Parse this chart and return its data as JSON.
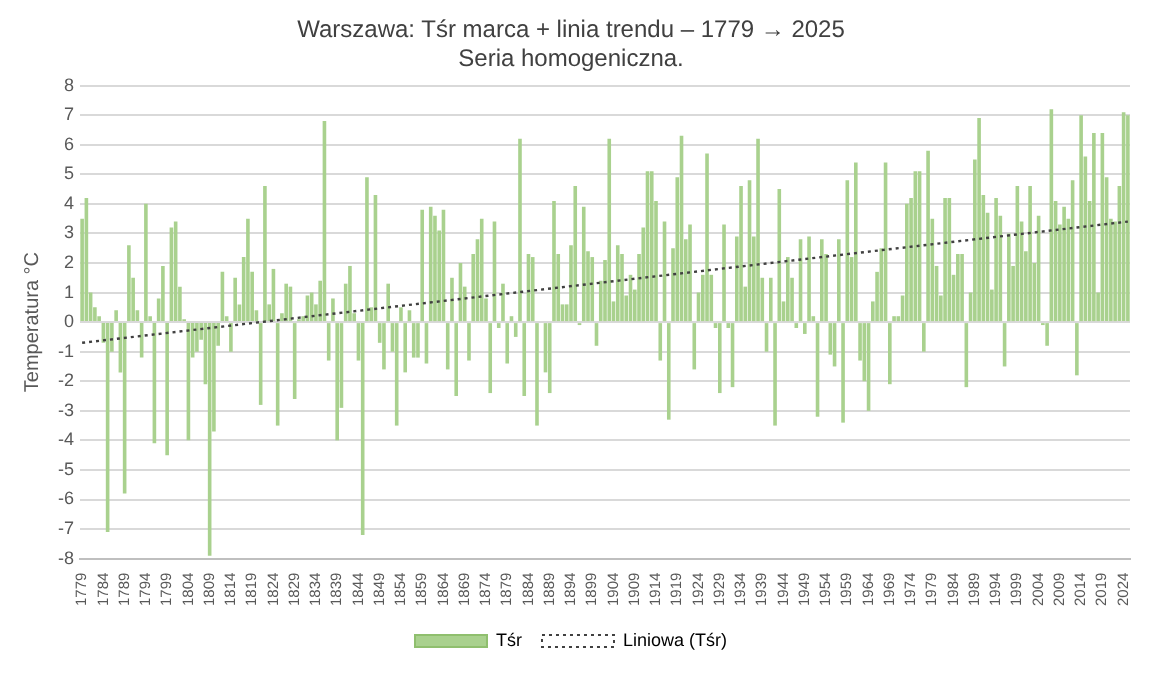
{
  "chart_data": {
    "type": "bar",
    "title": "Warszawa: Tśr marca + linia trendu – 1779 → 2025",
    "subtitle": "Seria homogeniczna.",
    "ylabel": "Temperatura °C",
    "x": [
      1779,
      1780,
      1781,
      1782,
      1783,
      1784,
      1785,
      1786,
      1787,
      1788,
      1789,
      1790,
      1791,
      1792,
      1793,
      1794,
      1795,
      1796,
      1797,
      1798,
      1799,
      1800,
      1801,
      1802,
      1803,
      1804,
      1805,
      1806,
      1807,
      1808,
      1809,
      1810,
      1811,
      1812,
      1813,
      1814,
      1815,
      1816,
      1817,
      1818,
      1819,
      1820,
      1821,
      1822,
      1823,
      1824,
      1825,
      1826,
      1827,
      1828,
      1829,
      1830,
      1831,
      1832,
      1833,
      1834,
      1835,
      1836,
      1837,
      1838,
      1839,
      1840,
      1841,
      1842,
      1843,
      1844,
      1845,
      1846,
      1847,
      1848,
      1849,
      1850,
      1851,
      1852,
      1853,
      1854,
      1855,
      1856,
      1857,
      1858,
      1859,
      1860,
      1861,
      1862,
      1863,
      1864,
      1865,
      1866,
      1867,
      1868,
      1869,
      1870,
      1871,
      1872,
      1873,
      1874,
      1875,
      1876,
      1877,
      1878,
      1879,
      1880,
      1881,
      1882,
      1883,
      1884,
      1885,
      1886,
      1887,
      1888,
      1889,
      1890,
      1891,
      1892,
      1893,
      1894,
      1895,
      1896,
      1897,
      1898,
      1899,
      1900,
      1901,
      1902,
      1903,
      1904,
      1905,
      1906,
      1907,
      1908,
      1909,
      1910,
      1911,
      1912,
      1913,
      1914,
      1915,
      1916,
      1917,
      1918,
      1919,
      1920,
      1921,
      1922,
      1923,
      1924,
      1925,
      1926,
      1927,
      1928,
      1929,
      1930,
      1931,
      1932,
      1933,
      1934,
      1935,
      1936,
      1937,
      1938,
      1939,
      1940,
      1941,
      1942,
      1943,
      1944,
      1945,
      1946,
      1947,
      1948,
      1949,
      1950,
      1951,
      1952,
      1953,
      1954,
      1955,
      1956,
      1957,
      1958,
      1959,
      1960,
      1961,
      1962,
      1963,
      1964,
      1965,
      1966,
      1967,
      1968,
      1969,
      1970,
      1971,
      1972,
      1973,
      1974,
      1975,
      1976,
      1977,
      1978,
      1979,
      1980,
      1981,
      1982,
      1983,
      1984,
      1985,
      1986,
      1987,
      1988,
      1989,
      1990,
      1991,
      1992,
      1993,
      1994,
      1995,
      1996,
      1997,
      1998,
      1999,
      2000,
      2001,
      2002,
      2003,
      2004,
      2005,
      2006,
      2007,
      2008,
      2009,
      2010,
      2011,
      2012,
      2013,
      2014,
      2015,
      2016,
      2017,
      2018,
      2019,
      2020,
      2021,
      2022,
      2023,
      2024,
      2025
    ],
    "series": [
      {
        "name": "Tśr",
        "color": "#a9d18e",
        "values": [
          3.5,
          4.2,
          1.0,
          0.5,
          0.2,
          -0.7,
          -7.1,
          -1.0,
          0.4,
          -1.7,
          -5.8,
          2.6,
          1.5,
          0.4,
          -1.2,
          4.0,
          0.2,
          -4.1,
          0.8,
          1.9,
          -4.5,
          3.2,
          3.4,
          1.2,
          0.1,
          -4.0,
          -1.2,
          -1.0,
          -0.6,
          -2.1,
          -7.9,
          -3.7,
          -0.8,
          1.7,
          0.2,
          -1.0,
          1.5,
          0.6,
          2.2,
          3.5,
          1.7,
          0.4,
          -2.8,
          4.6,
          0.6,
          1.8,
          -3.5,
          0.3,
          1.3,
          1.2,
          -2.6,
          0.1,
          0.2,
          0.9,
          1.0,
          0.6,
          1.4,
          6.8,
          -1.3,
          0.8,
          -4.0,
          -2.9,
          1.3,
          1.9,
          0.3,
          -1.3,
          -7.2,
          4.9,
          0.5,
          4.3,
          -0.7,
          -1.6,
          1.3,
          -1.0,
          -3.5,
          0.5,
          -1.7,
          0.4,
          -1.2,
          -1.2,
          3.8,
          -1.4,
          3.9,
          3.6,
          3.1,
          3.8,
          -1.6,
          1.5,
          -2.5,
          2.0,
          1.2,
          -1.3,
          2.3,
          2.8,
          3.5,
          0.8,
          -2.4,
          3.4,
          -0.2,
          1.3,
          -1.4,
          0.2,
          -0.5,
          6.2,
          -2.5,
          2.3,
          2.2,
          -3.5,
          0.0,
          -1.7,
          -2.4,
          4.1,
          2.3,
          0.6,
          0.6,
          2.6,
          4.6,
          -0.1,
          3.9,
          2.4,
          2.2,
          -0.8,
          1.4,
          2.1,
          6.2,
          0.7,
          2.6,
          2.3,
          0.9,
          1.6,
          1.1,
          2.3,
          3.2,
          5.1,
          5.1,
          4.1,
          -1.3,
          3.4,
          -3.3,
          2.5,
          4.9,
          6.3,
          2.8,
          3.3,
          -1.6,
          1.0,
          1.6,
          5.7,
          1.6,
          -0.2,
          -2.4,
          3.3,
          -0.2,
          -2.2,
          2.9,
          4.6,
          1.2,
          4.8,
          2.9,
          6.2,
          1.5,
          -1.0,
          1.5,
          -3.5,
          4.5,
          0.7,
          2.2,
          1.5,
          -0.2,
          2.8,
          -0.4,
          2.9,
          0.2,
          -3.2,
          2.8,
          2.3,
          -1.1,
          -1.5,
          2.8,
          -3.4,
          4.8,
          2.2,
          5.4,
          -1.3,
          -2.0,
          -3.0,
          0.7,
          1.7,
          2.5,
          5.4,
          -2.1,
          0.2,
          0.2,
          0.9,
          4.0,
          4.2,
          5.1,
          5.1,
          -1.0,
          5.8,
          3.5,
          1.9,
          0.9,
          4.2,
          4.2,
          1.6,
          2.3,
          2.3,
          -2.2,
          1.0,
          5.5,
          6.9,
          4.3,
          3.7,
          1.1,
          4.2,
          3.6,
          -1.5,
          3.0,
          1.9,
          4.6,
          3.4,
          2.4,
          4.6,
          2.0,
          3.6,
          -0.1,
          -0.8,
          7.2,
          4.1,
          3.3,
          3.9,
          3.5,
          4.8,
          -1.8,
          7.0,
          5.6,
          4.1,
          6.4,
          1.0,
          6.4,
          4.9,
          3.5,
          3.4,
          4.6,
          7.1,
          7.0
        ]
      },
      {
        "name": "Liniowa (Tśr)",
        "type": "line",
        "color": "#404040",
        "line_style": "dotted",
        "marker": "none",
        "x": [
          1779,
          2025
        ],
        "values": [
          -0.7,
          3.4
        ]
      }
    ],
    "xlim": [
      1778.5,
      2025.5
    ],
    "xticks": [
      1779,
      1784,
      1789,
      1794,
      1799,
      1804,
      1809,
      1814,
      1819,
      1824,
      1829,
      1834,
      1839,
      1844,
      1849,
      1854,
      1859,
      1864,
      1869,
      1874,
      1879,
      1884,
      1889,
      1894,
      1899,
      1904,
      1909,
      1914,
      1919,
      1924,
      1929,
      1934,
      1939,
      1944,
      1949,
      1954,
      1959,
      1964,
      1969,
      1974,
      1979,
      1984,
      1989,
      1994,
      1999,
      2004,
      2009,
      2014,
      2019,
      2024
    ],
    "ylim": [
      -8,
      8
    ],
    "yticks": [
      -8,
      -7,
      -6,
      -5,
      -4,
      -3,
      -2,
      -1,
      0,
      1,
      2,
      3,
      4,
      5,
      6,
      7,
      8
    ],
    "grid": "y",
    "legend": "bottom"
  }
}
